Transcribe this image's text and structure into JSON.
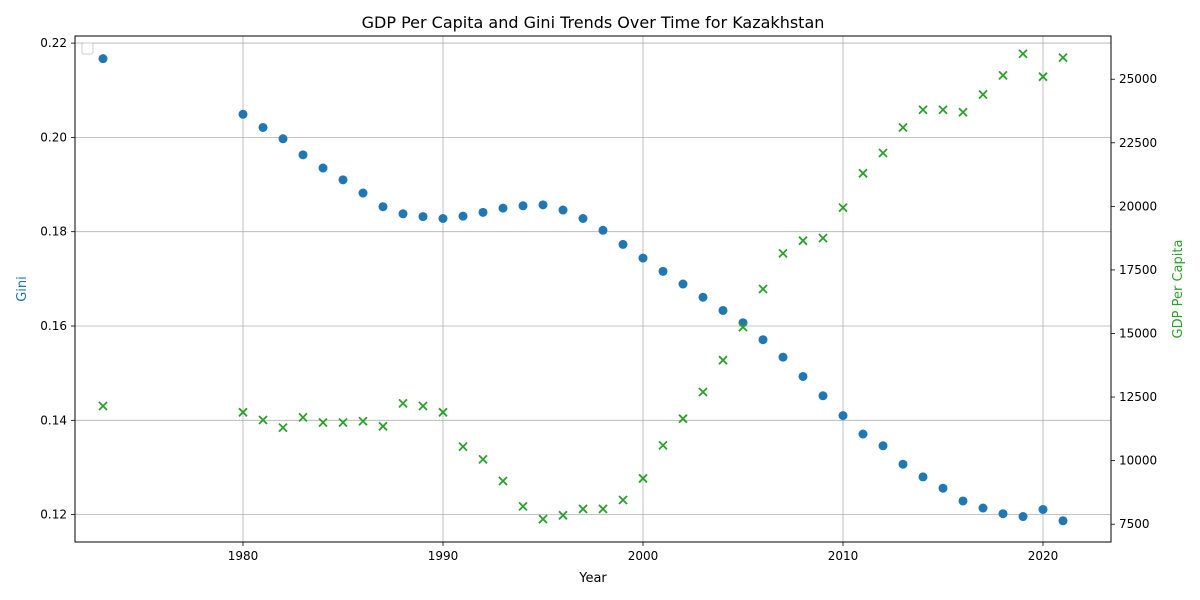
{
  "chart_data": {
    "type": "scatter",
    "title": "GDP Per Capita and Gini Trends Over Time for Kazakhstan",
    "xlabel": "Year",
    "ylabel_left": "Gini",
    "ylabel_right": "GDP Per Capita",
    "xlim": [
      1971.6,
      2023.4
    ],
    "ylim_left": [
      0.1142,
      0.2215
    ],
    "ylim_right": [
      6800,
      26700
    ],
    "x_ticks": [
      1980,
      1990,
      2000,
      2010,
      2020
    ],
    "y_ticks_left": [
      0.12,
      0.14,
      0.16,
      0.18,
      0.2,
      0.22
    ],
    "y_ticks_left_labels": [
      "0.12",
      "0.14",
      "0.16",
      "0.18",
      "0.20",
      "0.22"
    ],
    "y_ticks_right": [
      7500,
      10000,
      12500,
      15000,
      17500,
      20000,
      22500,
      25000
    ],
    "grid": true,
    "legend": {
      "placement": "top-left",
      "entries": []
    },
    "colors": {
      "gini": "#1f77b4",
      "gdp": "#2ca02c"
    },
    "series": [
      {
        "key": "gini",
        "axis": "left",
        "marker": "circle",
        "x": [
          1973,
          1980,
          1981,
          1982,
          1983,
          1984,
          1985,
          1986,
          1987,
          1988,
          1989,
          1990,
          1991,
          1992,
          1993,
          1994,
          1995,
          1996,
          1997,
          1998,
          1999,
          2000,
          2001,
          2002,
          2003,
          2004,
          2005,
          2006,
          2007,
          2008,
          2009,
          2010,
          2011,
          2012,
          2013,
          2014,
          2015,
          2016,
          2017,
          2018,
          2019,
          2020,
          2021
        ],
        "y": [
          0.2167,
          0.2049,
          0.2021,
          0.1997,
          0.1963,
          0.1935,
          0.191,
          0.1882,
          0.1853,
          0.1838,
          0.1832,
          0.1828,
          0.1833,
          0.1841,
          0.185,
          0.1855,
          0.1857,
          0.1846,
          0.1828,
          0.1803,
          0.1773,
          0.1744,
          0.1716,
          0.1689,
          0.1661,
          0.1633,
          0.1607,
          0.1571,
          0.1534,
          0.1493,
          0.1452,
          0.141,
          0.1371,
          0.1346,
          0.1307,
          0.128,
          0.1256,
          0.1229,
          0.1214,
          0.1202,
          0.1196,
          0.1211,
          0.1187
        ]
      },
      {
        "key": "gdp",
        "axis": "right",
        "marker": "x",
        "x": [
          1973,
          1980,
          1981,
          1982,
          1983,
          1984,
          1985,
          1986,
          1987,
          1988,
          1989,
          1990,
          1991,
          1992,
          1993,
          1994,
          1995,
          1996,
          1997,
          1998,
          1999,
          2000,
          2001,
          2002,
          2003,
          2004,
          2005,
          2006,
          2007,
          2008,
          2009,
          2010,
          2011,
          2012,
          2013,
          2014,
          2015,
          2016,
          2017,
          2018,
          2019,
          2020,
          2021
        ],
        "y": [
          12150,
          11900,
          11600,
          11300,
          11700,
          11500,
          11500,
          11550,
          11350,
          12250,
          12150,
          11900,
          10550,
          10050,
          9200,
          8200,
          7700,
          7850,
          8100,
          8100,
          8450,
          9300,
          10600,
          11650,
          12700,
          13950,
          15250,
          16750,
          18150,
          18650,
          18750,
          19950,
          21300,
          22100,
          23100,
          23800,
          23800,
          23700,
          24400,
          25150,
          26000,
          25100,
          25850
        ]
      }
    ]
  }
}
